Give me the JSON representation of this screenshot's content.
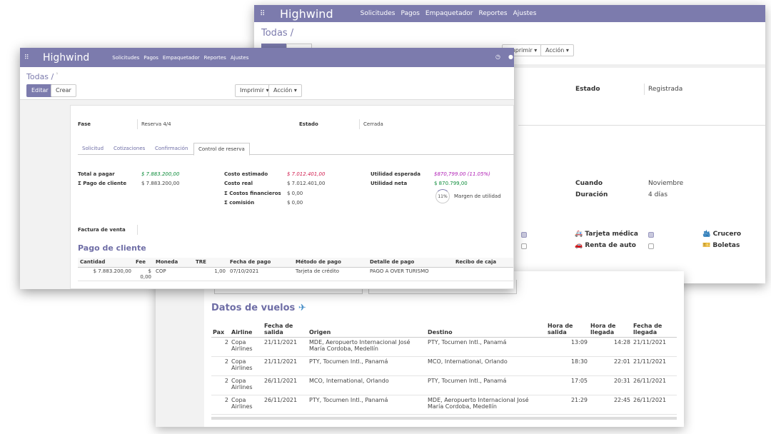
{
  "back": {
    "app_name": "Highwind",
    "nav": [
      "Solicitudes",
      "Pagos",
      "Empaquetador",
      "Reportes",
      "Ajustes"
    ],
    "breadcrumb": "Todas /",
    "imprimir": "mprimir ▾",
    "accion": "Acción ▾",
    "estado_label": "Estado",
    "estado_value": "Registrada",
    "cuando_label": "Cuando",
    "cuando_value": "Noviembre",
    "duracion_label": "Duración",
    "duracion_value": "4 días",
    "services": {
      "tarjeta_medica": "Tarjeta médica",
      "crucero": "Crucero",
      "renta_de_auto": "Renta de auto",
      "boletas": "Boletas"
    }
  },
  "flights": {
    "title": "Datos de vuelos",
    "headers": {
      "pax": "Pax",
      "airline": "Airline",
      "fecha_salida": "Fecha de salida",
      "origen": "Origen",
      "destino": "Destino",
      "hora_salida": "Hora de salida",
      "hora_llegada": "Hora de llegada",
      "fecha_llegada": "Fecha de llegada"
    },
    "rows": [
      {
        "pax": "2",
        "airline": "Copa Airlines",
        "fecha_salida": "21/11/2021",
        "origen": "MDE, Aeropuerto Internacional José María Cordoba, Medellín",
        "destino": "PTY, Tocumen Intl., Panamá",
        "hora_salida": "13:09",
        "hora_llegada": "14:28",
        "fecha_llegada": "21/11/2021"
      },
      {
        "pax": "2",
        "airline": "Copa Airlines",
        "fecha_salida": "21/11/2021",
        "origen": "PTY, Tocumen Intl., Panamá",
        "destino": "MCO, International, Orlando",
        "hora_salida": "18:30",
        "hora_llegada": "22:01",
        "fecha_llegada": "21/11/2021"
      },
      {
        "pax": "2",
        "airline": "Copa Airlines",
        "fecha_salida": "26/11/2021",
        "origen": "MCO, International, Orlando",
        "destino": "PTY, Tocumen Intl., Panamá",
        "hora_salida": "17:05",
        "hora_llegada": "20:31",
        "fecha_llegada": "26/11/2021"
      },
      {
        "pax": "2",
        "airline": "Copa Airlines",
        "fecha_salida": "26/11/2021",
        "origen": "PTY, Tocumen Intl., Panamá",
        "destino": "MDE, Aeropuerto Internacional José María Cordoba, Medellín",
        "hora_salida": "21:29",
        "hora_llegada": "22:45",
        "fecha_llegada": "26/11/2021"
      }
    ]
  },
  "front": {
    "app_name": "Highwind",
    "nav": [
      "Solicitudes",
      "Pagos",
      "Empaquetador",
      "Reportes",
      "Ajustes"
    ],
    "breadcrumb": "Todas /",
    "editar": "Editar",
    "crear": "Crear",
    "imprimir": "Imprimir ▾",
    "accion": "Acción ▾",
    "fase_label": "Fase",
    "fase_value": "Reserva 4/4",
    "estado_label": "Estado",
    "estado_value": "Cerrada",
    "tabs": [
      "Solicitud",
      "Cotizaciones",
      "Confirmación",
      "Control de reserva"
    ],
    "totals": {
      "total_pagar_label": "Total a pagar",
      "total_pagar_value": "$ 7.883.200,00",
      "pago_cliente_label": "Σ Pago de cliente",
      "pago_cliente_value": "$ 7.883.200,00",
      "costo_estimado_label": "Costo estimado",
      "costo_estimado_value": "$ 7.012.401,00",
      "costo_real_label": "Costo real",
      "costo_real_value": "$ 7.012.401,00",
      "costos_financieros_label": "Σ Costos financieros",
      "costos_financieros_value": "$ 0,00",
      "comision_label": "Σ comisión",
      "comision_value": "$ 0,00",
      "utilidad_esperada_label": "Utilidad esperada",
      "utilidad_esperada_value": "$870,799.00 (11.05%)",
      "utilidad_neta_label": "Utilidad neta",
      "utilidad_neta_value": "$ 870.799,00",
      "margen_percent": "11%",
      "margen_label": "Margen de utilidad"
    },
    "factura_label": "Factura de venta",
    "pago_title": "Pago de cliente",
    "pago_headers": {
      "cantidad": "Cantidad",
      "fee": "Fee",
      "moneda": "Moneda",
      "tre": "TRE",
      "fecha": "Fecha de pago",
      "metodo": "Método de pago",
      "detalle": "Detalle de pago",
      "recibo": "Recibo de caja"
    },
    "pago_row": {
      "cantidad": "$ 7.883.200,00",
      "fee": "$ 0,00",
      "moneda": "COP",
      "tre": "1,00",
      "fecha": "07/10/2021",
      "metodo": "Tarjeta de crédito",
      "detalle": "PAGO A OVER TURISMO",
      "recibo": ""
    }
  },
  "colors": {
    "header": "#7c7bad",
    "accent": "#7c7bad",
    "link": "#6f6ea6",
    "red_value": "#d11d4f",
    "green_value": "#0d8c3a",
    "magenta_value": "#b01fb5"
  }
}
